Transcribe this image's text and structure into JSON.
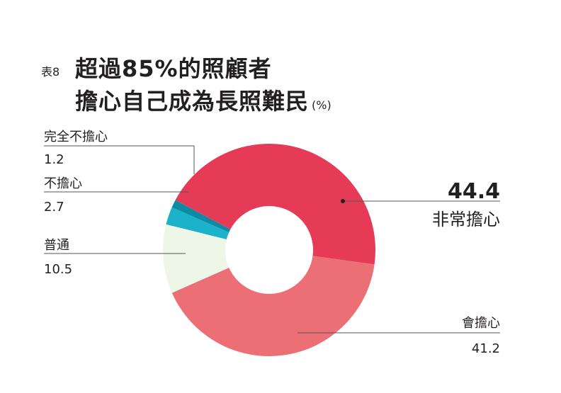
{
  "table_label": "表8",
  "title_line1": "超過85%的照顧者",
  "title_line2": "擔心自己成為長照難民",
  "title_unit": "(%)",
  "colors": {
    "very_worried": "#e63b57",
    "worried": "#ec6f76",
    "neutral": "#eef6e8",
    "not_worried": "#1bb3c9",
    "not_at_all": "#0e8aa4",
    "leader": "#555555"
  },
  "chart_data": {
    "type": "pie",
    "title": "超過85%的照顧者擔心自己成為長照難民",
    "unit": "%",
    "donut": true,
    "slices": [
      {
        "label": "非常擔心",
        "value": 44.4,
        "display": "44.4"
      },
      {
        "label": "會擔心",
        "value": 41.2,
        "display": "41.2"
      },
      {
        "label": "普通",
        "value": 10.5,
        "display": "10.5"
      },
      {
        "label": "不擔心",
        "value": 2.7,
        "display": "2.7"
      },
      {
        "label": "完全不擔心",
        "value": 1.2,
        "display": "1.2"
      }
    ]
  }
}
